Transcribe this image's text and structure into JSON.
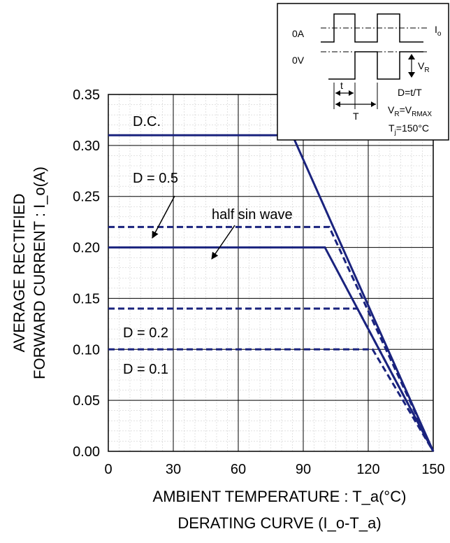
{
  "chart_data": {
    "type": "line",
    "title": "DERATING CURVE (I_o-T_a)",
    "xlabel": "AMBIENT TEMPERATURE : T_a(°C)",
    "ylabel_line1": "AVERAGE RECTIFIED",
    "ylabel_line2": "FORWARD CURRENT : I_o(A)",
    "xlim": [
      0,
      150
    ],
    "ylim": [
      0,
      0.35
    ],
    "xticks": [
      "0",
      "30",
      "60",
      "90",
      "120",
      "150"
    ],
    "yticks": [
      "0.00",
      "0.05",
      "0.10",
      "0.15",
      "0.20",
      "0.25",
      "0.30",
      "0.35"
    ],
    "grid": true,
    "line_color": "#1a237e",
    "series": [
      {
        "name": "D.C.",
        "style": "solid",
        "x": [
          0,
          85,
          150
        ],
        "y": [
          0.31,
          0.31,
          0
        ]
      },
      {
        "name": "D = 0.5",
        "style": "dashed",
        "x": [
          0,
          102,
          150
        ],
        "y": [
          0.22,
          0.22,
          0
        ]
      },
      {
        "name": "half sin wave",
        "style": "solid",
        "x": [
          0,
          100,
          150
        ],
        "y": [
          0.2,
          0.2,
          0
        ]
      },
      {
        "name": "D = 0.2",
        "style": "dashed",
        "x": [
          0,
          115,
          150
        ],
        "y": [
          0.14,
          0.14,
          0
        ]
      },
      {
        "name": "D = 0.1",
        "style": "dashed",
        "x": [
          0,
          122,
          150
        ],
        "y": [
          0.1,
          0.1,
          0
        ]
      }
    ],
    "annotations": {
      "dc": "D.C.",
      "d05": "D = 0.5",
      "half_sin": "half sin wave",
      "d02": "D = 0.2",
      "d01": "D = 0.1"
    },
    "inset": {
      "zero_a": "0A",
      "zero_v": "0V",
      "io": "I",
      "io_sub": "o",
      "vr": "V",
      "vr_sub": "R",
      "t_small": "t",
      "t_big": "T",
      "duty": "D=t/T",
      "vr_eq_main": "V",
      "vr_eq_sub1": "R",
      "vr_eq_mid": "=V",
      "vr_eq_sub2": "RMAX",
      "tj_main": "T",
      "tj_sub": "j",
      "tj_rest": "=150°C"
    }
  }
}
